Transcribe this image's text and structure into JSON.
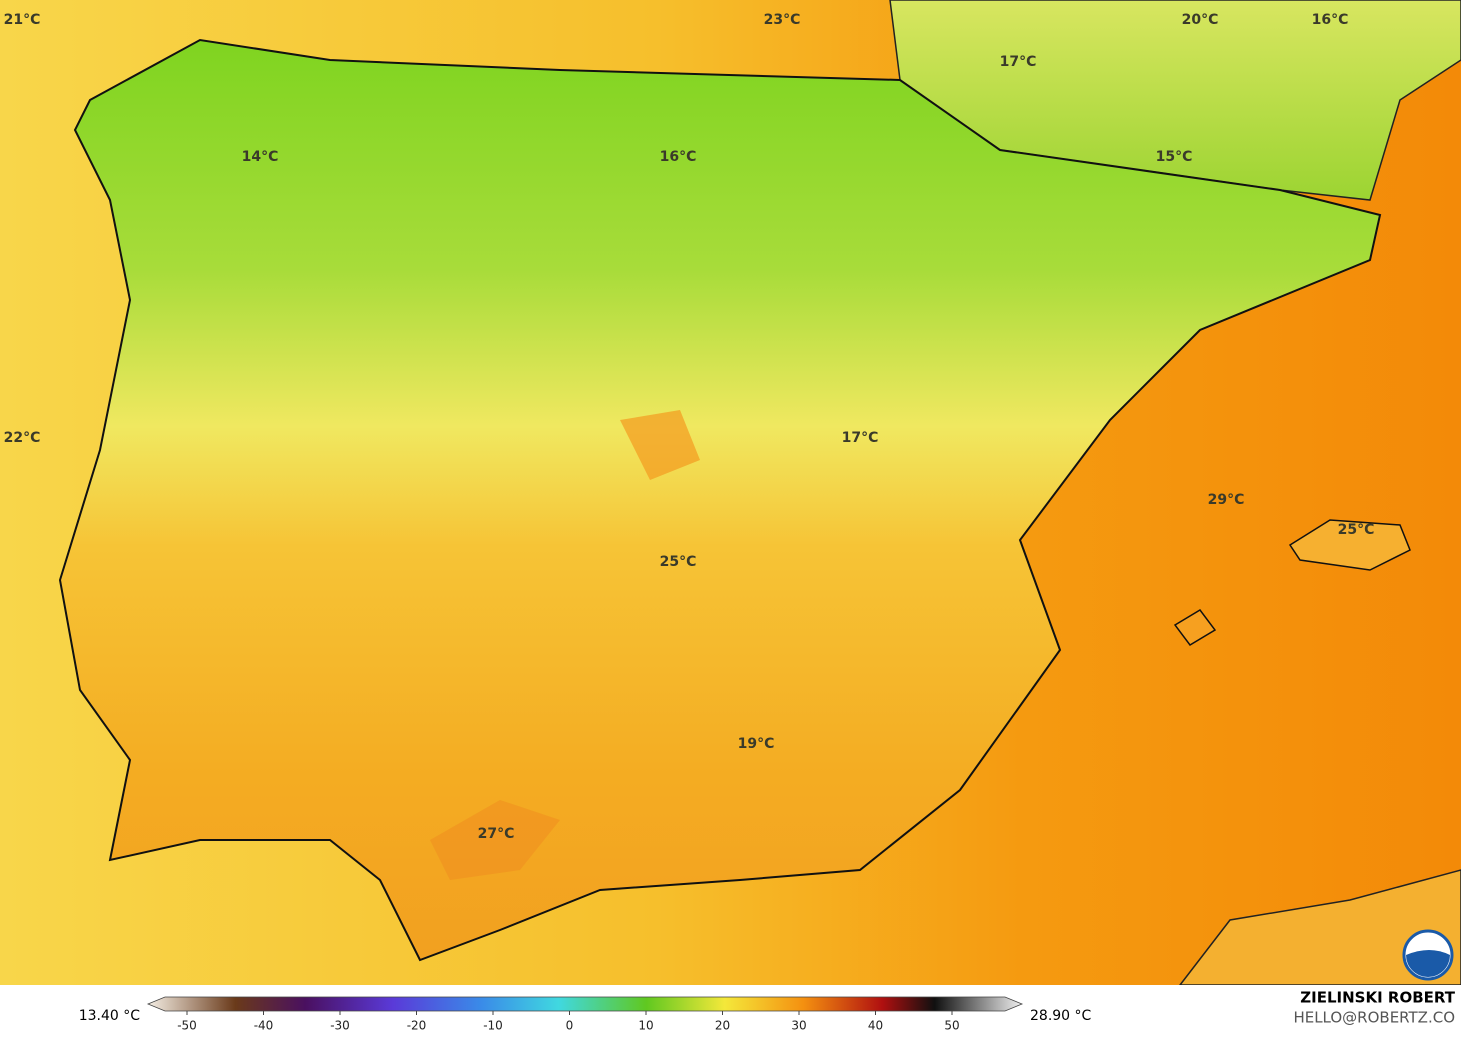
{
  "map": {
    "labels": [
      "21°C",
      "23°C",
      "20°C",
      "16°C",
      "17°C",
      "14°C",
      "16°C",
      "15°C",
      "22°C",
      "17°C",
      "29°C",
      "25°C",
      "25°C",
      "19°C",
      "27°C"
    ],
    "colorbar": {
      "min_label": "13.40 °C",
      "max_label": "28.90 °C",
      "ticks": [
        -50,
        -40,
        -30,
        -20,
        -10,
        0,
        10,
        20,
        30,
        40,
        50
      ]
    },
    "credit": {
      "name": "ZIELINSKI ROBERT",
      "email": "HELLO@ROBERTZ.CO"
    }
  }
}
